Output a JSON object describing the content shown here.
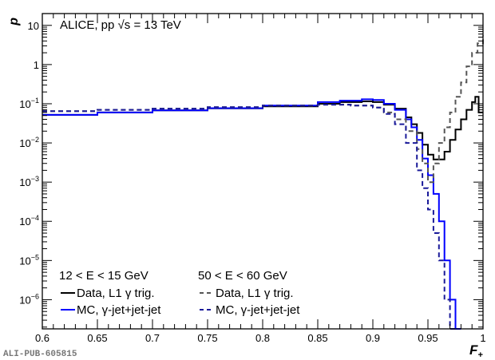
{
  "chart_data": {
    "type": "line",
    "title": "",
    "annotation": "ALICE, pp √s = 13 TeV",
    "xlabel": "F",
    "xlabel_sub": "+",
    "ylabel": "p",
    "xlim": [
      0.6,
      1.0
    ],
    "ylim": [
      1.8e-07,
      20
    ],
    "yscale": "log",
    "grid": false,
    "x_ticks": [
      0.6,
      0.65,
      0.7,
      0.75,
      0.8,
      0.85,
      0.9,
      0.95,
      1.0
    ],
    "x_tick_labels": [
      "0.6",
      "0.65",
      "0.7",
      "0.75",
      "0.8",
      "0.85",
      "0.9",
      "0.95",
      "1"
    ],
    "y_ticks": [
      1e-06,
      1e-05,
      0.0001,
      0.001,
      0.01,
      0.1,
      1,
      10
    ],
    "y_tick_labels": [
      {
        "base": "10",
        "exp": "−6"
      },
      {
        "base": "10",
        "exp": "−5"
      },
      {
        "base": "10",
        "exp": "−4"
      },
      {
        "base": "10",
        "exp": "−3"
      },
      {
        "base": "10",
        "exp": "−2"
      },
      {
        "base": "10",
        "exp": "−1"
      },
      {
        "base": "1",
        "exp": ""
      },
      {
        "base": "10",
        "exp": ""
      }
    ],
    "legend": {
      "placement": "bottom-left",
      "groups": [
        {
          "header": "12 < E < 15 GeV",
          "entries": [
            "Data, L1 γ trig.",
            "MC, γ-jet+jet-jet"
          ]
        },
        {
          "header": "50 < E < 60 GeV",
          "entries": [
            "Data, L1 γ trig.",
            "MC, γ-jet+jet-jet"
          ]
        }
      ]
    },
    "series": [
      {
        "name": "Data, L1 γ trig. (12 < E < 15 GeV)",
        "color": "#000000",
        "dash": false,
        "x": [
          0.6,
          0.65,
          0.7,
          0.75,
          0.8,
          0.85,
          0.87,
          0.89,
          0.9,
          0.91,
          0.92,
          0.93,
          0.935,
          0.94,
          0.945,
          0.95,
          0.955,
          0.96,
          0.965,
          0.97,
          0.975,
          0.98,
          0.985,
          0.99,
          0.993,
          0.996
        ],
        "y": [
          0.052,
          0.06,
          0.068,
          0.076,
          0.086,
          0.1,
          0.11,
          0.115,
          0.11,
          0.095,
          0.075,
          0.045,
          0.03,
          0.018,
          0.009,
          0.005,
          0.0038,
          0.0038,
          0.006,
          0.012,
          0.022,
          0.04,
          0.07,
          0.11,
          0.15,
          0.06
        ]
      },
      {
        "name": "MC, γ-jet+jet-jet (12 < E < 15 GeV)",
        "color": "#0000ff",
        "dash": false,
        "x": [
          0.6,
          0.65,
          0.7,
          0.75,
          0.8,
          0.85,
          0.87,
          0.89,
          0.9,
          0.91,
          0.92,
          0.93,
          0.935,
          0.94,
          0.945,
          0.95,
          0.955,
          0.96,
          0.965,
          0.97,
          0.975
        ],
        "y": [
          0.052,
          0.06,
          0.068,
          0.077,
          0.09,
          0.11,
          0.12,
          0.13,
          0.125,
          0.1,
          0.07,
          0.04,
          0.025,
          0.012,
          0.004,
          0.0015,
          0.0005,
          0.0001,
          1e-05,
          1e-06,
          1.8e-07
        ]
      },
      {
        "name": "Data, L1 γ trig. (50 < E < 60 GeV)",
        "color": "#555555",
        "dash": true,
        "x": [
          0.6,
          0.65,
          0.7,
          0.75,
          0.8,
          0.85,
          0.88,
          0.9,
          0.91,
          0.92,
          0.93,
          0.94,
          0.945,
          0.95,
          0.955,
          0.96,
          0.965,
          0.97,
          0.975,
          0.98,
          0.985,
          0.99,
          0.995,
          1.0
        ],
        "y": [
          0.065,
          0.07,
          0.075,
          0.082,
          0.09,
          0.095,
          0.09,
          0.08,
          0.06,
          0.04,
          0.02,
          0.007,
          0.003,
          0.001,
          0.003,
          0.01,
          0.025,
          0.06,
          0.15,
          0.35,
          0.9,
          2.0,
          3.5,
          5.5
        ]
      },
      {
        "name": "MC, γ-jet+jet-jet (50 < E < 60 GeV)",
        "color": "#1a1a99",
        "dash": true,
        "x": [
          0.6,
          0.65,
          0.7,
          0.75,
          0.8,
          0.85,
          0.88,
          0.9,
          0.91,
          0.92,
          0.93,
          0.94,
          0.945,
          0.95,
          0.955,
          0.96,
          0.965,
          0.97
        ],
        "y": [
          0.065,
          0.07,
          0.075,
          0.082,
          0.09,
          0.095,
          0.09,
          0.08,
          0.055,
          0.03,
          0.01,
          0.002,
          0.0007,
          0.0002,
          5e-05,
          1e-05,
          1e-06,
          1.8e-07
        ]
      }
    ]
  },
  "watermark": "ALI-PUB-605815"
}
